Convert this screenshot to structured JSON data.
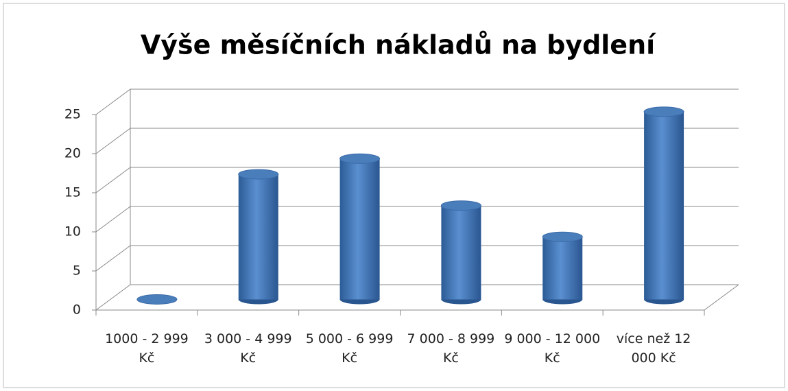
{
  "chart_data": {
    "type": "bar3d",
    "title": "Výše měsíčních nákladů na bydlení",
    "categories": [
      "1000 - 2 999 Kč",
      "3 000 - 4 999 Kč",
      "5 000 - 6 999 Kč",
      "7 000 - 8 999 Kč",
      "9 000 - 12 000 Kč",
      "více než 12 000 Kč"
    ],
    "values": [
      0,
      16,
      18,
      12,
      8,
      24
    ],
    "color": "#4a7ebb",
    "ylim": [
      0,
      25
    ],
    "yticks": [
      0,
      5,
      10,
      15,
      20,
      25
    ],
    "grid": true
  }
}
